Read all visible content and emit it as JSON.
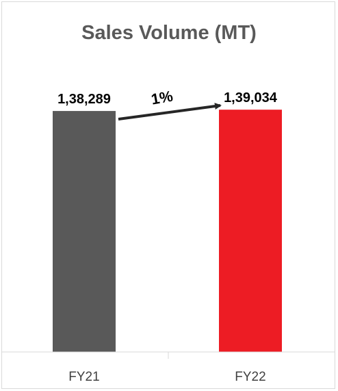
{
  "chart_data": {
    "type": "bar",
    "title": "Sales Volume (MT)",
    "categories": [
      "FY21",
      "FY22"
    ],
    "values": [
      138289,
      139034
    ],
    "value_labels": [
      "1,38,289",
      "1,39,034"
    ],
    "bar_colors": [
      "#595959",
      "#ed1c24"
    ],
    "xlabel": "",
    "ylabel": "",
    "ylim": [
      0,
      145000
    ],
    "grid": false,
    "legend": "none",
    "annotation": {
      "text": "1%",
      "from": "FY21",
      "to": "FY22"
    }
  },
  "colors": {
    "title": "#595959",
    "axis": "#d9d9d9",
    "arrow": "#262626"
  }
}
